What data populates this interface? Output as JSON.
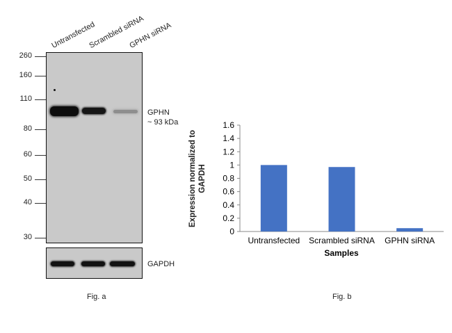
{
  "fig_a": {
    "lanes": [
      "Untransfected",
      "Scrambled siRNA",
      "GPHN siRNA"
    ],
    "markers": [
      "260",
      "160",
      "110",
      "80",
      "60",
      "50",
      "40",
      "30"
    ],
    "target_label": "GPHN",
    "target_size": "~ 93 kDa",
    "control_label": "GAPDH",
    "caption": "Fig. a"
  },
  "fig_b": {
    "caption": "Fig. b"
  },
  "chart_data": {
    "type": "bar",
    "categories": [
      "Untransfected",
      "Scrambled siRNA",
      "GPHN siRNA"
    ],
    "values": [
      1.0,
      0.97,
      0.05
    ],
    "title": "",
    "xlabel": "Samples",
    "ylabel": "Expression normalized to GAPDH",
    "ylim": [
      0,
      1.6
    ],
    "yticks": [
      "0",
      "0.2",
      "0.4",
      "0.6",
      "0.8",
      "1",
      "1.2",
      "1.4",
      "1.6"
    ],
    "grid": false,
    "bar_color": "#4472C4"
  }
}
